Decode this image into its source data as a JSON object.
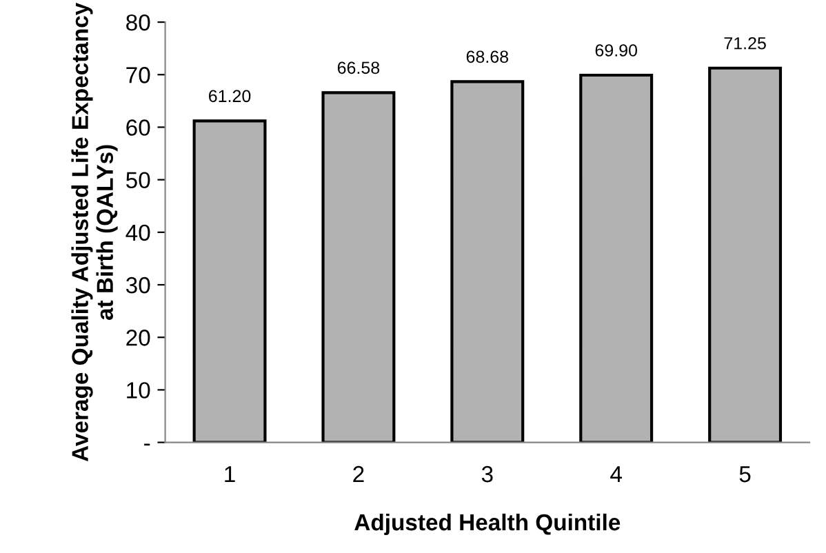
{
  "chart_data": {
    "type": "bar",
    "xlabel": "Adjusted Health Quintile",
    "ylabel": "Average Quality Adjusted Life Expectancy at Birth (QALYs)",
    "categories": [
      "1",
      "2",
      "3",
      "4",
      "5"
    ],
    "values": [
      61.2,
      66.58,
      68.68,
      69.9,
      71.25
    ],
    "value_labels": [
      "61.20",
      "66.58",
      "68.68",
      "69.90",
      "71.25"
    ],
    "color": "#b2b2b2",
    "ylim": [
      0,
      80
    ],
    "yticks": [
      {
        "value": 0,
        "label": "-"
      },
      10,
      20,
      30,
      40,
      50,
      60,
      70,
      80
    ],
    "grid": false
  }
}
